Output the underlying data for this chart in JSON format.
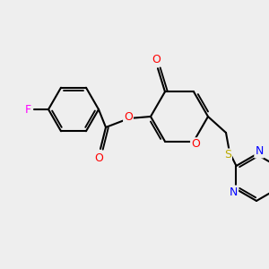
{
  "background_color": "#eeeeee",
  "bond_color": "#000000",
  "atom_colors": {
    "O": "#ff0000",
    "N": "#0000ff",
    "F": "#ff00ff",
    "S": "#bbaa00",
    "C": "#000000"
  },
  "figsize": [
    3.0,
    3.0
  ],
  "dpi": 100,
  "lw": 1.5,
  "doff": 2.8,
  "fs": 9
}
